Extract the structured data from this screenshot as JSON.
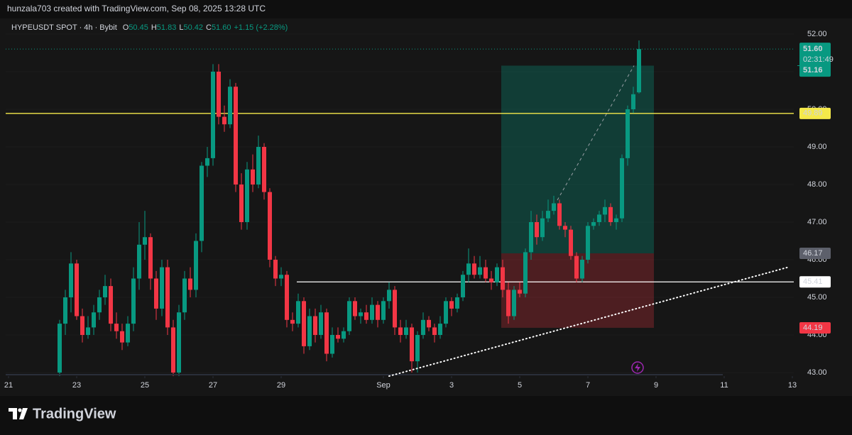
{
  "header": {
    "text": "hunzala703 created with TradingView.com, Sep 08, 2025 13:28 UTC"
  },
  "footer": {
    "logo": "TradingView"
  },
  "chart_data": {
    "type": "candlestick",
    "title": "HYPEUSDT SPOT · 4h · Bybit",
    "legend": [
      {
        "key": "O",
        "text": "50.45"
      },
      {
        "key": "H",
        "text": "51.83"
      },
      {
        "key": "L",
        "text": "50.42"
      },
      {
        "key": "C",
        "text": "51.60"
      }
    ],
    "change": "+1.15 (+2.28%)",
    "up_color": "#089981",
    "down_color": "#f23645",
    "candles": [
      [
        43.0,
        44.4,
        42.8,
        44.3
      ],
      [
        44.3,
        45.2,
        44.0,
        45.0
      ],
      [
        45.0,
        46.2,
        44.6,
        45.9
      ],
      [
        45.9,
        46.0,
        44.4,
        44.5
      ],
      [
        44.5,
        44.7,
        43.8,
        44.0
      ],
      [
        44.0,
        44.5,
        43.9,
        44.2
      ],
      [
        44.2,
        44.8,
        44.0,
        44.6
      ],
      [
        44.6,
        45.2,
        44.4,
        45.0
      ],
      [
        45.0,
        45.6,
        44.8,
        45.3
      ],
      [
        45.3,
        45.5,
        44.1,
        44.3
      ],
      [
        44.3,
        44.6,
        43.9,
        44.1
      ],
      [
        44.1,
        44.3,
        43.6,
        43.8
      ],
      [
        43.8,
        44.5,
        43.7,
        44.3
      ],
      [
        44.3,
        45.8,
        44.1,
        45.5
      ],
      [
        45.5,
        47.0,
        45.2,
        46.4
      ],
      [
        46.4,
        47.3,
        46.0,
        46.6
      ],
      [
        46.6,
        46.7,
        45.2,
        45.5
      ],
      [
        45.5,
        45.7,
        44.4,
        44.7
      ],
      [
        44.7,
        46.0,
        44.5,
        45.8
      ],
      [
        45.8,
        46.0,
        44.0,
        44.2
      ],
      [
        44.2,
        44.4,
        42.9,
        43.0
      ],
      [
        43.0,
        44.8,
        42.9,
        44.6
      ],
      [
        44.6,
        45.7,
        44.4,
        45.5
      ],
      [
        45.5,
        45.8,
        45.0,
        45.2
      ],
      [
        45.2,
        46.7,
        45.0,
        46.5
      ],
      [
        46.5,
        48.6,
        46.2,
        48.5
      ],
      [
        48.5,
        49.0,
        48.2,
        48.7
      ],
      [
        48.7,
        51.2,
        48.5,
        51.0
      ],
      [
        51.0,
        51.2,
        49.6,
        49.8
      ],
      [
        49.8,
        50.1,
        49.4,
        49.6
      ],
      [
        49.6,
        50.8,
        49.5,
        50.6
      ],
      [
        50.6,
        50.7,
        47.8,
        48.0
      ],
      [
        48.0,
        48.3,
        46.8,
        47.0
      ],
      [
        47.0,
        48.6,
        46.8,
        48.4
      ],
      [
        48.4,
        48.8,
        47.8,
        48.0
      ],
      [
        48.0,
        49.3,
        47.9,
        49.0
      ],
      [
        49.0,
        49.1,
        47.6,
        47.8
      ],
      [
        47.8,
        47.9,
        45.8,
        46.0
      ],
      [
        46.0,
        46.1,
        45.3,
        45.5
      ],
      [
        45.5,
        45.8,
        45.3,
        45.6
      ],
      [
        45.6,
        45.7,
        44.2,
        44.4
      ],
      [
        44.4,
        44.6,
        44.1,
        44.3
      ],
      [
        44.3,
        45.1,
        44.2,
        44.9
      ],
      [
        44.9,
        45.0,
        43.5,
        43.7
      ],
      [
        43.7,
        44.7,
        43.6,
        44.5
      ],
      [
        44.5,
        44.7,
        43.8,
        44.0
      ],
      [
        44.0,
        44.8,
        43.9,
        44.6
      ],
      [
        44.6,
        44.7,
        43.3,
        43.5
      ],
      [
        43.5,
        44.2,
        43.4,
        44.0
      ],
      [
        44.0,
        44.2,
        43.8,
        43.9
      ],
      [
        43.9,
        44.2,
        43.8,
        44.1
      ],
      [
        44.1,
        45.0,
        44.0,
        44.9
      ],
      [
        44.9,
        45.0,
        44.4,
        44.5
      ],
      [
        44.5,
        44.7,
        44.3,
        44.6
      ],
      [
        44.6,
        44.8,
        44.3,
        44.4
      ],
      [
        44.4,
        45.0,
        44.3,
        44.8
      ],
      [
        44.8,
        44.9,
        44.2,
        44.4
      ],
      [
        44.4,
        45.0,
        44.3,
        44.9
      ],
      [
        44.9,
        45.4,
        44.7,
        45.2
      ],
      [
        45.2,
        45.3,
        44.0,
        44.2
      ],
      [
        44.2,
        44.4,
        43.8,
        44.0
      ],
      [
        44.0,
        44.4,
        43.9,
        44.2
      ],
      [
        44.2,
        44.3,
        43.0,
        43.3
      ],
      [
        43.3,
        44.1,
        43.0,
        44.0
      ],
      [
        44.0,
        44.6,
        43.9,
        44.4
      ],
      [
        44.4,
        44.5,
        44.1,
        44.2
      ],
      [
        44.2,
        44.3,
        43.8,
        44.0
      ],
      [
        44.0,
        44.5,
        43.9,
        44.3
      ],
      [
        44.3,
        45.0,
        44.2,
        44.9
      ],
      [
        44.9,
        45.0,
        44.5,
        44.7
      ],
      [
        44.7,
        45.1,
        44.6,
        45.0
      ],
      [
        45.0,
        45.7,
        44.9,
        45.6
      ],
      [
        45.6,
        46.3,
        45.4,
        45.9
      ],
      [
        45.9,
        46.1,
        45.5,
        45.6
      ],
      [
        45.6,
        46.1,
        45.5,
        45.8
      ],
      [
        45.8,
        46.0,
        45.4,
        45.5
      ],
      [
        45.5,
        45.7,
        45.2,
        45.4
      ],
      [
        45.4,
        45.9,
        45.3,
        45.8
      ],
      [
        45.8,
        46.0,
        45.0,
        45.2
      ],
      [
        45.2,
        45.4,
        44.3,
        44.5
      ],
      [
        44.5,
        45.3,
        44.4,
        45.2
      ],
      [
        45.2,
        45.4,
        45.0,
        45.1
      ],
      [
        45.1,
        46.3,
        45.0,
        46.2
      ],
      [
        46.2,
        47.3,
        46.0,
        47.0
      ],
      [
        47.0,
        47.2,
        46.4,
        46.6
      ],
      [
        46.6,
        47.3,
        46.5,
        47.1
      ],
      [
        47.1,
        47.6,
        47.0,
        47.3
      ],
      [
        47.3,
        47.7,
        47.2,
        47.5
      ],
      [
        47.5,
        47.6,
        46.8,
        46.9
      ],
      [
        46.9,
        47.0,
        46.6,
        46.8
      ],
      [
        46.8,
        46.9,
        46.0,
        46.1
      ],
      [
        46.1,
        46.2,
        45.4,
        45.5
      ],
      [
        45.5,
        46.1,
        45.4,
        46.0
      ],
      [
        46.0,
        47.0,
        45.9,
        46.9
      ],
      [
        46.9,
        47.1,
        46.8,
        47.0
      ],
      [
        47.0,
        47.3,
        46.9,
        47.2
      ],
      [
        47.2,
        47.6,
        47.0,
        47.4
      ],
      [
        47.4,
        47.5,
        46.9,
        47.0
      ],
      [
        47.0,
        47.2,
        46.8,
        47.1
      ],
      [
        47.1,
        48.8,
        47.0,
        48.7
      ],
      [
        48.7,
        50.1,
        48.5,
        50.0
      ],
      [
        50.0,
        50.6,
        49.9,
        50.4
      ],
      [
        50.45,
        51.83,
        50.42,
        51.6
      ]
    ],
    "ylim": [
      42.906,
      52.377
    ],
    "yticks": [
      {
        "value": 43,
        "label": "43.00"
      },
      {
        "value": 44,
        "label": "44.00"
      },
      {
        "value": 45,
        "label": "45.00"
      },
      {
        "value": 46,
        "label": "46.00"
      },
      {
        "value": 47,
        "label": "47.00"
      },
      {
        "value": 48,
        "label": "48.00"
      },
      {
        "value": 49,
        "label": "49.00"
      },
      {
        "value": 50,
        "label": "50.00"
      },
      {
        "value": 51,
        "label": "51.00"
      },
      {
        "value": 52,
        "label": "52.00"
      }
    ],
    "xlim": [
      -9.5,
      129.25
    ],
    "xticks": [
      {
        "value": -9,
        "label": "21"
      },
      {
        "value": 3,
        "label": "23"
      },
      {
        "value": 15,
        "label": "25"
      },
      {
        "value": 27,
        "label": "27"
      },
      {
        "value": 39,
        "label": "29"
      },
      {
        "value": 57,
        "label": "Sep"
      },
      {
        "value": 69,
        "label": "3"
      },
      {
        "value": 81,
        "label": "5"
      },
      {
        "value": 93,
        "label": "7"
      },
      {
        "value": 105,
        "label": "9"
      },
      {
        "value": 117,
        "label": "11"
      },
      {
        "value": 129,
        "label": "13"
      }
    ],
    "last_price": {
      "value": 51.6,
      "label": "51.60",
      "countdown": "02:31:49",
      "color": "#089981"
    },
    "levels": [
      {
        "value": 49.89,
        "label": "49.89",
        "color": "#f5e94a"
      },
      {
        "value": 45.41,
        "label": "45.41",
        "color": "#ffffff"
      }
    ],
    "position": {
      "target": {
        "value": 51.16,
        "label": "51.16"
      },
      "entry": {
        "value": 46.17,
        "label": "46.17"
      },
      "stop": {
        "value": 44.19,
        "label": "44.19"
      }
    }
  }
}
